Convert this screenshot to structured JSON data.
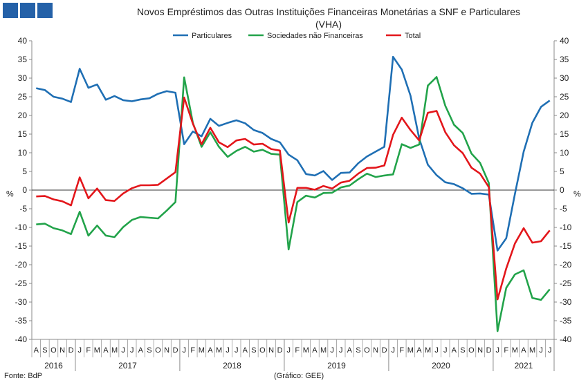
{
  "header": {
    "title": "Novos Empréstimos das Outras Instituições Financeiras Monetárias a SNF e Particulares",
    "subtitle": "(VHA)"
  },
  "footer": {
    "source": "Fonte: BdP",
    "graph_credit": "(Gráfico: GEE)"
  },
  "colors": {
    "particulares": "#1f6fb4",
    "snf": "#22a34a",
    "total": "#e3161b",
    "logo": "#2461a8"
  },
  "chart_data": {
    "type": "line",
    "title": "Novos Empréstimos das Outras Instituições Financeiras Monetárias a SNF e Particulares",
    "subtitle": "(VHA)",
    "ylabel_left": "%",
    "ylabel_right": "%",
    "ylim": [
      -40,
      40
    ],
    "ytick_step": 5,
    "legend_position": "top-center",
    "grid": false,
    "month_labels": [
      "A",
      "S",
      "O",
      "N",
      "D",
      "J",
      "F",
      "M",
      "A",
      "M",
      "J",
      "J",
      "A",
      "S",
      "O",
      "N",
      "D",
      "J",
      "F",
      "M",
      "A",
      "M",
      "J",
      "J",
      "A",
      "S",
      "O",
      "N",
      "D",
      "J",
      "F",
      "M",
      "A",
      "M",
      "J",
      "J",
      "A",
      "S",
      "O",
      "N",
      "D",
      "J",
      "F",
      "M",
      "A",
      "M",
      "J",
      "J",
      "A",
      "S",
      "O",
      "N",
      "D",
      "J",
      "F",
      "M",
      "A",
      "M",
      "J",
      "J"
    ],
    "year_labels": [
      {
        "label": "2016",
        "start": 0,
        "end": 4
      },
      {
        "label": "2017",
        "start": 5,
        "end": 16
      },
      {
        "label": "2018",
        "start": 17,
        "end": 28
      },
      {
        "label": "2019",
        "start": 29,
        "end": 40
      },
      {
        "label": "2020",
        "start": 41,
        "end": 52
      },
      {
        "label": "2021",
        "start": 53,
        "end": 59
      }
    ],
    "series": [
      {
        "name": "Particulares",
        "color": "#1f6fb4",
        "values": [
          27.3,
          26.8,
          25.0,
          24.5,
          23.6,
          32.5,
          27.4,
          28.3,
          24.2,
          25.2,
          24.1,
          23.8,
          24.3,
          24.6,
          25.8,
          26.5,
          26.1,
          12.3,
          15.7,
          14.4,
          19.1,
          17.2,
          18.0,
          18.7,
          17.9,
          16.1,
          15.3,
          13.7,
          12.8,
          9.5,
          8.0,
          4.3,
          3.9,
          5.1,
          2.7,
          4.6,
          4.7,
          7.2,
          9.0,
          10.3,
          11.6,
          35.7,
          32.3,
          25.3,
          13.8,
          6.8,
          4.0,
          2.1,
          1.6,
          0.5,
          -1.0,
          -0.9,
          -1.2,
          -16.2,
          -12.9,
          -1.0,
          10.3,
          18.0,
          22.3,
          24.0
        ]
      },
      {
        "name": "Sociedades não Financeiras",
        "color": "#22a34a",
        "values": [
          -9.2,
          -9.0,
          -10.2,
          -10.8,
          -11.8,
          -5.8,
          -12.2,
          -9.5,
          -12.2,
          -12.6,
          -9.9,
          -8.0,
          -7.2,
          -7.4,
          -7.6,
          -5.5,
          -3.2,
          30.2,
          18.0,
          11.6,
          15.5,
          11.6,
          8.9,
          10.5,
          11.6,
          10.3,
          10.8,
          9.7,
          9.5,
          -15.9,
          -3.2,
          -1.5,
          -2.0,
          -0.8,
          -0.7,
          0.7,
          1.2,
          2.9,
          4.4,
          3.5,
          3.9,
          4.2,
          12.3,
          11.3,
          12.2,
          28.0,
          30.3,
          22.6,
          17.5,
          15.3,
          9.8,
          7.3,
          1.9,
          -37.8,
          -26.2,
          -22.6,
          -21.5,
          -28.9,
          -29.4,
          -26.6
        ]
      },
      {
        "name": "Total",
        "color": "#e3161b",
        "values": [
          -1.7,
          -1.6,
          -2.5,
          -3.0,
          -4.1,
          3.4,
          -2.2,
          0.4,
          -2.7,
          -2.9,
          -0.9,
          0.5,
          1.3,
          1.3,
          1.4,
          3.1,
          4.8,
          24.8,
          17.8,
          12.3,
          16.7,
          12.8,
          11.5,
          13.3,
          13.7,
          12.2,
          12.4,
          11.0,
          10.6,
          -8.7,
          0.6,
          0.6,
          0.1,
          1.1,
          0.4,
          2.0,
          2.5,
          4.4,
          5.9,
          6.0,
          6.6,
          14.8,
          19.4,
          16.1,
          13.3,
          20.7,
          21.2,
          15.5,
          12.0,
          9.9,
          6.0,
          4.4,
          0.8,
          -29.3,
          -21.0,
          -14.3,
          -10.2,
          -14.1,
          -13.7,
          -10.8
        ]
      }
    ]
  }
}
